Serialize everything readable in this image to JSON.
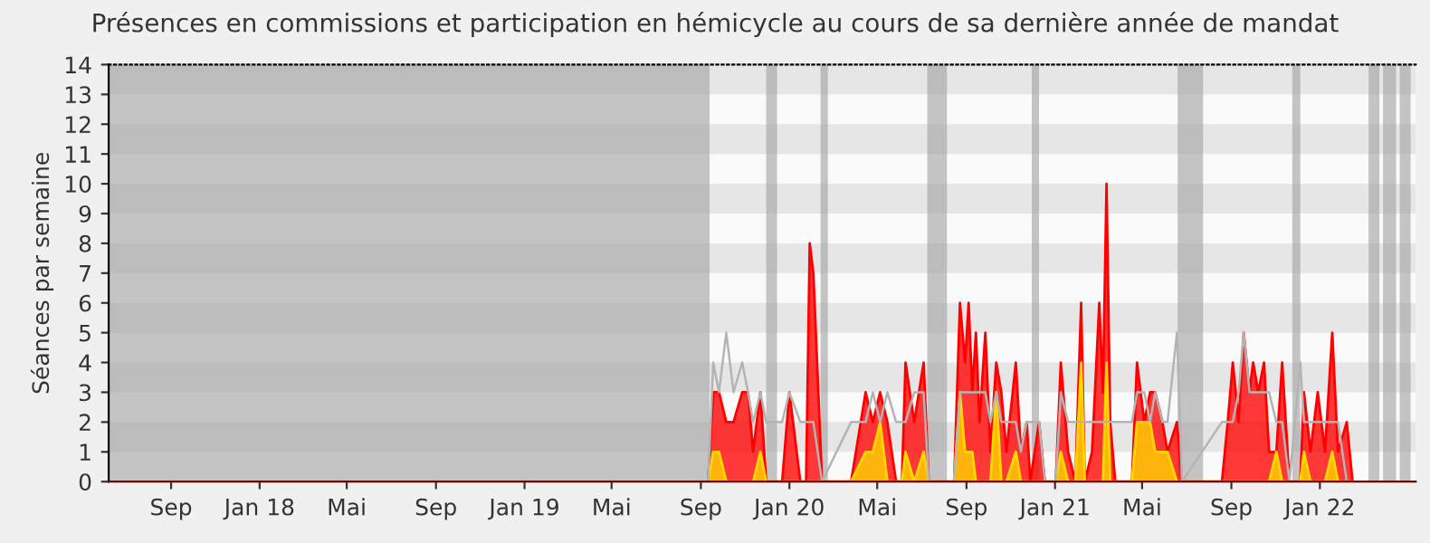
{
  "chart_data": {
    "type": "area",
    "title": "Présences en commissions et participation en hémicycle au cours de sa dernière année de mandat",
    "ylabel": "Séances par semaine",
    "xlim": [
      "2017-06-07",
      "2022-05-13"
    ],
    "ylim": [
      0,
      14
    ],
    "yticks": [
      0,
      1,
      2,
      3,
      4,
      5,
      6,
      7,
      8,
      9,
      10,
      11,
      12,
      13,
      14
    ],
    "xticks": [
      {
        "value": "2017-09-01",
        "label": "Sep"
      },
      {
        "value": "2018-01-01",
        "label": "Jan 18"
      },
      {
        "value": "2018-05-01",
        "label": "Mai"
      },
      {
        "value": "2018-09-01",
        "label": "Sep"
      },
      {
        "value": "2019-01-01",
        "label": "Jan 19"
      },
      {
        "value": "2019-05-01",
        "label": "Mai"
      },
      {
        "value": "2019-09-01",
        "label": "Sep"
      },
      {
        "value": "2020-01-01",
        "label": "Jan 20"
      },
      {
        "value": "2020-05-01",
        "label": "Mai"
      },
      {
        "value": "2020-09-01",
        "label": "Sep"
      },
      {
        "value": "2021-01-01",
        "label": "Jan 21"
      },
      {
        "value": "2021-05-01",
        "label": "Mai"
      },
      {
        "value": "2021-09-01",
        "label": "Sep"
      },
      {
        "value": "2022-01-01",
        "label": "Jan 22"
      }
    ],
    "grid": false,
    "bands": [
      {
        "axis": "y",
        "from": 1,
        "to": 2,
        "color": "#e6e6e6"
      },
      {
        "axis": "y",
        "from": 3,
        "to": 4,
        "color": "#e6e6e6"
      },
      {
        "axis": "y",
        "from": 5,
        "to": 6,
        "color": "#e6e6e6"
      },
      {
        "axis": "y",
        "from": 7,
        "to": 8,
        "color": "#e6e6e6"
      },
      {
        "axis": "y",
        "from": 9,
        "to": 10,
        "color": "#e6e6e6"
      },
      {
        "axis": "y",
        "from": 11,
        "to": 12,
        "color": "#e6e6e6"
      },
      {
        "axis": "y",
        "from": 13,
        "to": 14,
        "color": "#e6e6e6"
      },
      {
        "axis": "x",
        "from": "2017-06-07",
        "to": "2019-09-13",
        "color": "#a0a0a0"
      },
      {
        "axis": "x",
        "from": "2019-11-30",
        "to": "2019-12-15",
        "color": "#a0a0a0"
      },
      {
        "axis": "x",
        "from": "2020-02-13",
        "to": "2020-02-23",
        "color": "#a0a0a0"
      },
      {
        "axis": "x",
        "from": "2020-07-09",
        "to": "2020-08-05",
        "color": "#a0a0a0"
      },
      {
        "axis": "x",
        "from": "2020-11-30",
        "to": "2020-12-10",
        "color": "#a0a0a0"
      },
      {
        "axis": "x",
        "from": "2021-06-19",
        "to": "2021-07-24",
        "color": "#a0a0a0"
      },
      {
        "axis": "x",
        "from": "2021-11-24",
        "to": "2021-12-05",
        "color": "#a0a0a0"
      },
      {
        "axis": "x",
        "from": "2022-03-09",
        "to": "2022-03-24",
        "color": "#a0a0a0"
      },
      {
        "axis": "x",
        "from": "2022-03-29",
        "to": "2022-04-16",
        "color": "#a0a0a0"
      },
      {
        "axis": "x",
        "from": "2022-04-21",
        "to": "2022-05-06",
        "color": "#a0a0a0"
      }
    ],
    "x": [
      "2019-09-11",
      "2019-09-18",
      "2019-09-26",
      "2019-10-06",
      "2019-10-16",
      "2019-10-28",
      "2019-11-05",
      "2019-11-12",
      "2019-11-22",
      "2019-11-30",
      "2019-12-22",
      "2020-01-01",
      "2020-01-16",
      "2020-01-24",
      "2020-01-29",
      "2020-02-03",
      "2020-02-15",
      "2020-03-26",
      "2020-04-15",
      "2020-04-25",
      "2020-05-05",
      "2020-05-15",
      "2020-05-27",
      "2020-06-04",
      "2020-06-09",
      "2020-06-21",
      "2020-07-04",
      "2020-07-11",
      "2020-08-15",
      "2020-08-23",
      "2020-08-30",
      "2020-09-04",
      "2020-09-09",
      "2020-09-14",
      "2020-09-19",
      "2020-09-27",
      "2020-10-04",
      "2020-10-12",
      "2020-10-19",
      "2020-10-26",
      "2020-11-08",
      "2020-11-15",
      "2020-11-23",
      "2020-11-28",
      "2020-12-10",
      "2020-12-18",
      "2021-01-02",
      "2021-01-09",
      "2021-01-19",
      "2021-01-29",
      "2021-02-06",
      "2021-02-11",
      "2021-02-21",
      "2021-03-03",
      "2021-03-08",
      "2021-03-13",
      "2021-03-18",
      "2021-03-25",
      "2021-04-17",
      "2021-04-24",
      "2021-05-04",
      "2021-05-12",
      "2021-05-19",
      "2021-05-29",
      "2021-06-05",
      "2021-06-18",
      "2021-06-25",
      "2021-08-19",
      "2021-08-27",
      "2021-09-03",
      "2021-09-11",
      "2021-09-18",
      "2021-09-26",
      "2021-10-01",
      "2021-10-08",
      "2021-10-16",
      "2021-10-23",
      "2021-11-02",
      "2021-11-10",
      "2021-11-20",
      "2021-12-05",
      "2021-12-10",
      "2021-12-19",
      "2021-12-29",
      "2022-01-08",
      "2022-01-18",
      "2022-01-26",
      "2022-02-07",
      "2022-02-15"
    ],
    "series": [
      {
        "type": "line",
        "color": "#b4b4b4",
        "values": [
          0,
          4,
          3,
          5,
          3,
          4,
          3,
          2,
          3,
          2,
          2,
          3,
          2,
          2,
          2,
          2,
          0,
          2,
          2,
          3,
          2,
          3,
          2,
          2,
          2,
          3,
          3,
          0,
          0,
          3,
          3,
          3,
          3,
          3,
          3,
          3,
          2,
          3,
          2,
          2,
          2,
          1,
          2,
          2,
          2,
          0,
          0,
          3,
          2,
          2,
          2,
          2,
          2,
          2,
          2,
          2,
          2,
          2,
          2,
          3,
          3,
          2,
          3,
          2,
          2,
          5,
          0,
          2,
          2,
          2,
          3,
          5,
          3,
          3,
          3,
          3,
          3,
          2,
          2,
          0,
          4,
          2,
          2,
          2,
          2,
          2,
          2,
          0,
          0
        ]
      },
      {
        "color": "#ff0000",
        "values": [
          0,
          3,
          3,
          2,
          2,
          3,
          3,
          1,
          3,
          0,
          0,
          3,
          0,
          0,
          8,
          7,
          0,
          0,
          3,
          2,
          3,
          2,
          0,
          0,
          4,
          2,
          4,
          0,
          0,
          6,
          4,
          6,
          3,
          5,
          2,
          5,
          1,
          4,
          3,
          1,
          4,
          1,
          2,
          0,
          2,
          0,
          0,
          4,
          1,
          0,
          6,
          0,
          1,
          6,
          3,
          10,
          2,
          0,
          0,
          4,
          2,
          3,
          3,
          2,
          1,
          2,
          0,
          0,
          2,
          4,
          2,
          5,
          3,
          4,
          3,
          4,
          1,
          1,
          4,
          0,
          0,
          3,
          1,
          3,
          1,
          5,
          1,
          2,
          0
        ]
      },
      {
        "color": "#ffd700",
        "values": [
          0,
          1,
          1,
          0,
          0,
          0,
          0,
          0,
          1,
          0,
          0,
          0,
          0,
          0,
          0,
          0,
          0,
          0,
          1,
          1,
          2,
          0,
          0,
          0,
          1,
          0,
          1,
          0,
          0,
          3,
          1,
          1,
          1,
          0,
          0,
          0,
          0,
          3,
          0,
          0,
          1,
          0,
          0,
          0,
          0,
          0,
          0,
          1,
          0,
          0,
          4,
          0,
          0,
          0,
          0,
          4,
          0,
          0,
          0,
          2,
          2,
          2,
          1,
          1,
          1,
          0,
          0,
          0,
          0,
          0,
          0,
          0,
          0,
          0,
          0,
          0,
          0,
          1,
          0,
          0,
          0,
          1,
          0,
          0,
          0,
          1,
          0,
          0,
          0
        ]
      }
    ]
  }
}
